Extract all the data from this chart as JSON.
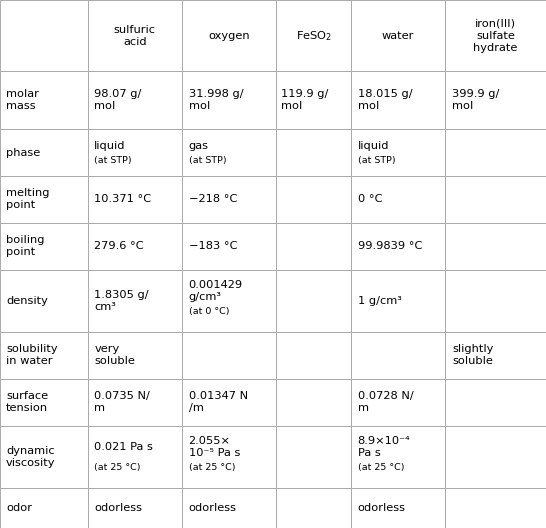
{
  "col_headers": [
    "",
    "sulfuric\nacid",
    "oxygen",
    "FeSO₂",
    "water",
    "iron(III)\nsulfate\nhydrate"
  ],
  "rows": [
    {
      "label": "molar\nmass",
      "cells": [
        {
          "main": "98.07 g/\nmol",
          "sub": ""
        },
        {
          "main": "31.998 g/\nmol",
          "sub": ""
        },
        {
          "main": "119.9 g/\nmol",
          "sub": ""
        },
        {
          "main": "18.015 g/\nmol",
          "sub": ""
        },
        {
          "main": "399.9 g/\nmol",
          "sub": ""
        }
      ]
    },
    {
      "label": "phase",
      "cells": [
        {
          "main": "liquid",
          "sub": "(at STP)"
        },
        {
          "main": "gas",
          "sub": "(at STP)"
        },
        {
          "main": "",
          "sub": ""
        },
        {
          "main": "liquid",
          "sub": "(at STP)"
        },
        {
          "main": "",
          "sub": ""
        }
      ]
    },
    {
      "label": "melting\npoint",
      "cells": [
        {
          "main": "10.371 °C",
          "sub": ""
        },
        {
          "main": "−218 °C",
          "sub": ""
        },
        {
          "main": "",
          "sub": ""
        },
        {
          "main": "0 °C",
          "sub": ""
        },
        {
          "main": "",
          "sub": ""
        }
      ]
    },
    {
      "label": "boiling\npoint",
      "cells": [
        {
          "main": "279.6 °C",
          "sub": ""
        },
        {
          "main": "−183 °C",
          "sub": ""
        },
        {
          "main": "",
          "sub": ""
        },
        {
          "main": "99.9839 °C",
          "sub": ""
        },
        {
          "main": "",
          "sub": ""
        }
      ]
    },
    {
      "label": "density",
      "cells": [
        {
          "main": "1.8305 g/\ncm³",
          "sub": ""
        },
        {
          "main": "0.001429\ng/cm³",
          "sub": "(at 0 °C)"
        },
        {
          "main": "",
          "sub": ""
        },
        {
          "main": "1 g/cm³",
          "sub": ""
        },
        {
          "main": "",
          "sub": ""
        }
      ]
    },
    {
      "label": "solubility\nin water",
      "cells": [
        {
          "main": "very\nsoluble",
          "sub": ""
        },
        {
          "main": "",
          "sub": ""
        },
        {
          "main": "",
          "sub": ""
        },
        {
          "main": "",
          "sub": ""
        },
        {
          "main": "slightly\nsoluble",
          "sub": ""
        }
      ]
    },
    {
      "label": "surface\ntension",
      "cells": [
        {
          "main": "0.0735 N/\nm",
          "sub": ""
        },
        {
          "main": "0.01347 N\n/m",
          "sub": ""
        },
        {
          "main": "",
          "sub": ""
        },
        {
          "main": "0.0728 N/\nm",
          "sub": ""
        },
        {
          "main": "",
          "sub": ""
        }
      ]
    },
    {
      "label": "dynamic\nviscosity",
      "cells": [
        {
          "main": "0.021 Pa s",
          "sub": "(at 25 °C)"
        },
        {
          "main": "2.055×\n10⁻⁵ Pa s",
          "sub": "(at 25 °C)"
        },
        {
          "main": "",
          "sub": ""
        },
        {
          "main": "8.9×10⁻⁴\nPa s",
          "sub": "(at 25 °C)"
        },
        {
          "main": "",
          "sub": ""
        }
      ]
    },
    {
      "label": "odor",
      "cells": [
        {
          "main": "odorless",
          "sub": ""
        },
        {
          "main": "odorless",
          "sub": ""
        },
        {
          "main": "",
          "sub": ""
        },
        {
          "main": "odorless",
          "sub": ""
        },
        {
          "main": "",
          "sub": ""
        }
      ]
    }
  ],
  "bg_color": "#ffffff",
  "line_color": "#aaaaaa",
  "header_font_size": 8.2,
  "cell_font_size": 8.2,
  "sub_font_size": 6.8,
  "label_font_size": 8.2,
  "col_widths_rel": [
    13.5,
    14.5,
    14.5,
    11.5,
    14.5,
    15.5
  ],
  "row_heights_rel": [
    16.0,
    13.0,
    10.5,
    10.5,
    10.5,
    14.0,
    10.5,
    10.5,
    14.0,
    9.0
  ]
}
